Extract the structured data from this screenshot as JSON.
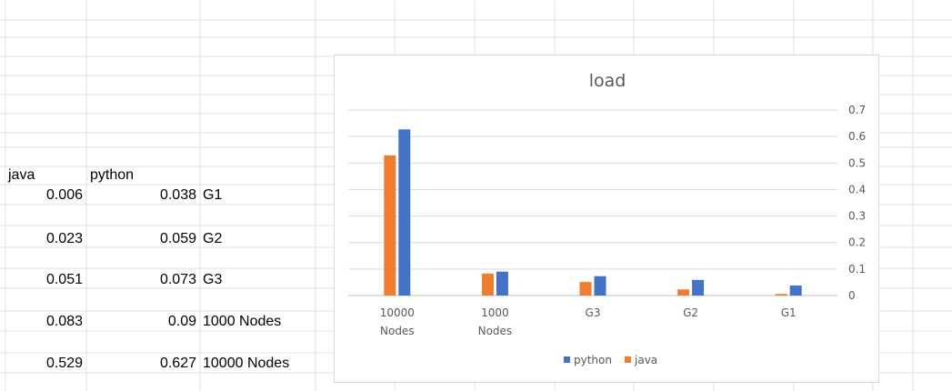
{
  "sheet": {
    "header": {
      "java": "java",
      "python": "python"
    },
    "rows": [
      {
        "java": "0.006",
        "python": "0.038",
        "label": "G1"
      },
      {
        "java": "0.023",
        "python": "0.059",
        "label": "G2"
      },
      {
        "java": "0.051",
        "python": "0.073",
        "label": "G3"
      },
      {
        "java": "0.083",
        "python": "0.09",
        "label": "1000 Nodes"
      },
      {
        "java": "0.529",
        "python": "0.627",
        "label": "10000 Nodes"
      }
    ]
  },
  "chart_data": {
    "type": "bar",
    "title": "load",
    "categories": [
      [
        "10000",
        "Nodes"
      ],
      [
        "1000",
        "Nodes"
      ],
      [
        "G3"
      ],
      [
        "G2"
      ],
      [
        "G1"
      ]
    ],
    "series": [
      {
        "name": "java",
        "color": "#ed7d31",
        "values": [
          0.529,
          0.083,
          0.051,
          0.023,
          0.006
        ]
      },
      {
        "name": "python",
        "color": "#4472c4",
        "values": [
          0.627,
          0.09,
          0.073,
          0.059,
          0.038
        ]
      }
    ],
    "yticks": [
      "0",
      "0.1",
      "0.2",
      "0.3",
      "0.4",
      "0.5",
      "0.6",
      "0.7"
    ],
    "ylim": [
      0,
      0.7
    ],
    "y_axis_side": "right",
    "grid": true,
    "legend": {
      "position": "bottom",
      "order": [
        "python",
        "java"
      ]
    }
  }
}
